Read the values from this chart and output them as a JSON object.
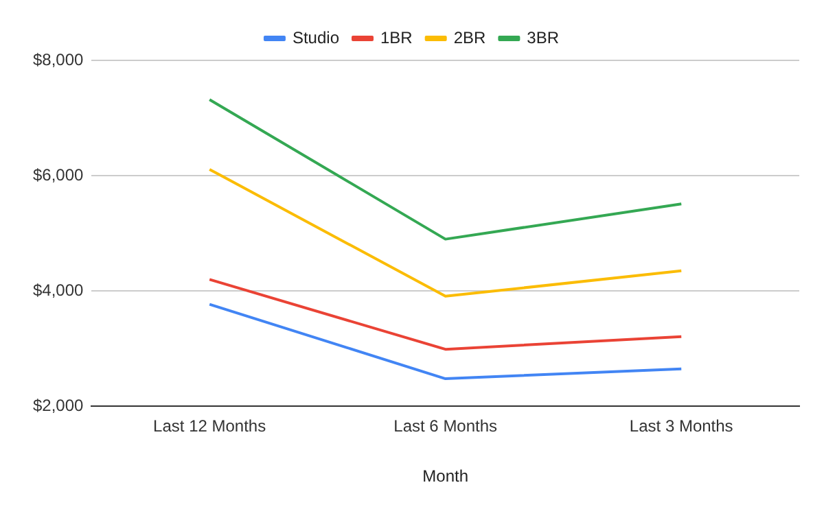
{
  "chart_data": {
    "type": "line",
    "xlabel": "Month",
    "categories": [
      "Last 12 Months",
      "Last 6 Months",
      "Last 3 Months"
    ],
    "series": [
      {
        "name": "Studio",
        "color": "#4285f4",
        "values": [
          3770,
          2480,
          2650
        ]
      },
      {
        "name": "1BR",
        "color": "#ea4335",
        "values": [
          4200,
          2990,
          3210
        ]
      },
      {
        "name": "2BR",
        "color": "#fbbc04",
        "values": [
          6110,
          3910,
          4350
        ]
      },
      {
        "name": "3BR",
        "color": "#34a853",
        "values": [
          7320,
          4900,
          5510
        ]
      }
    ],
    "ylim": [
      2000,
      8000
    ],
    "yticks": [
      {
        "value": 2000,
        "label": "$2,000"
      },
      {
        "value": 4000,
        "label": "$4,000"
      },
      {
        "value": 6000,
        "label": "$6,000"
      },
      {
        "value": 8000,
        "label": "$8,000"
      }
    ],
    "grid": "y",
    "legend": "top",
    "marker": "none",
    "line_style": "solid"
  }
}
